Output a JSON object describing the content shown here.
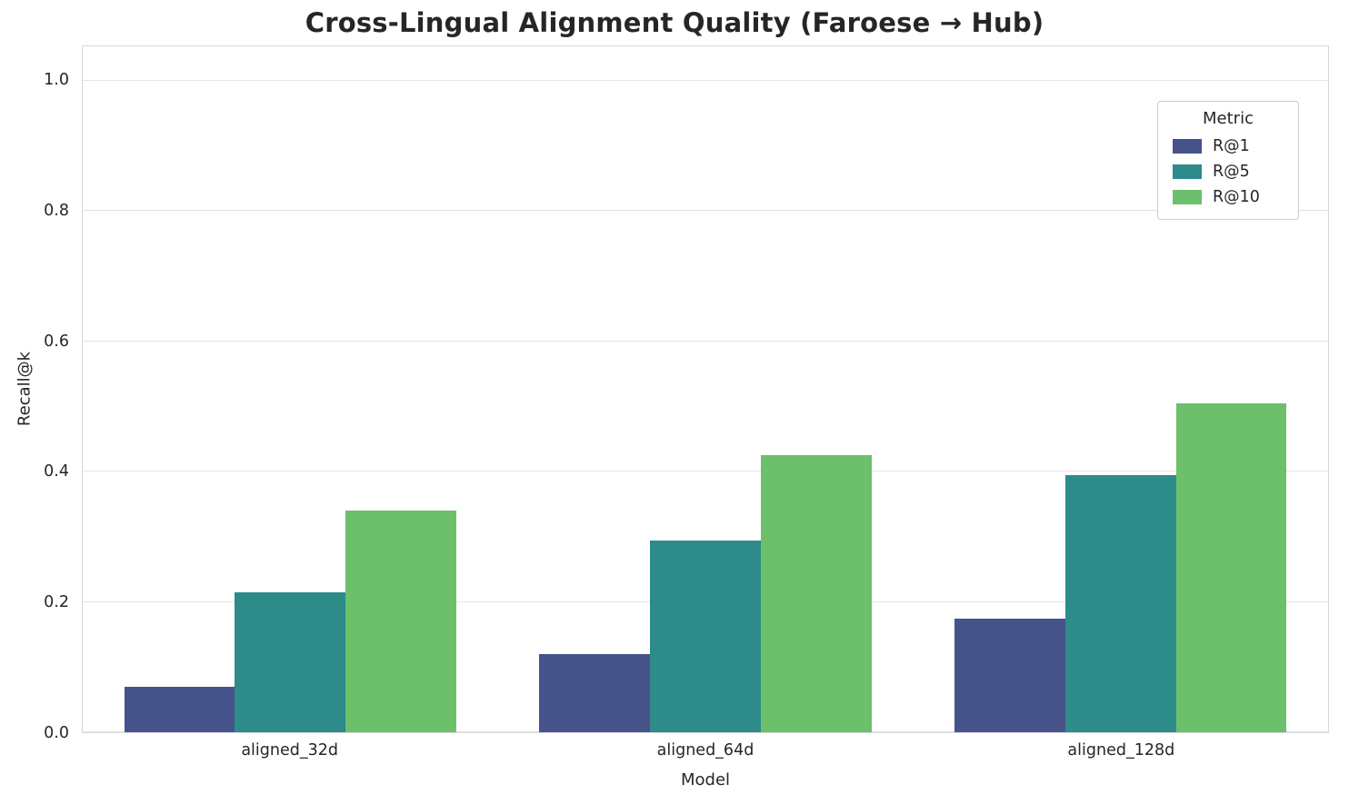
{
  "chart_data": {
    "type": "bar",
    "title": "Cross-Lingual Alignment Quality (Faroese → Hub)",
    "xlabel": "Model",
    "ylabel": "Recall@k",
    "categories": [
      "aligned_32d",
      "aligned_64d",
      "aligned_128d"
    ],
    "series": [
      {
        "name": "R@1",
        "color": "#46538a",
        "values": [
          0.07,
          0.12,
          0.175
        ]
      },
      {
        "name": "R@5",
        "color": "#2d8b8a",
        "values": [
          0.215,
          0.295,
          0.395
        ]
      },
      {
        "name": "R@10",
        "color": "#6cc06c",
        "values": [
          0.34,
          0.425,
          0.505
        ]
      }
    ],
    "yticks": [
      0.0,
      0.2,
      0.4,
      0.6,
      0.8,
      1.0
    ],
    "ylim": [
      0,
      1.053
    ],
    "grid": true,
    "legend": {
      "title": "Metric",
      "position": "upper right"
    }
  }
}
